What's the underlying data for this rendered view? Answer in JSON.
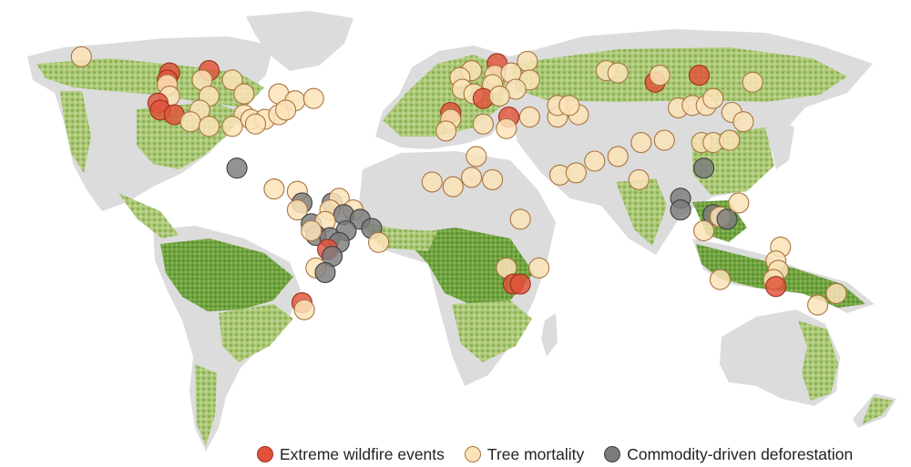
{
  "legend": {
    "wildfire": {
      "label": "Extreme wildfire events",
      "color": "#e0533a",
      "stroke": "#9b2f1f"
    },
    "mortality": {
      "label": "Tree mortality",
      "color": "#fbe3b8",
      "stroke": "#a8743e"
    },
    "deforestation": {
      "label": "Commodity-driven deforestation",
      "color": "#7b7b7b",
      "stroke": "#3e3e3e"
    }
  },
  "colors": {
    "land_bare": "#dcdcdc",
    "forest_light": "#c4d99a",
    "forest_mid": "#93bd55",
    "forest_dark": "#5f9a2c"
  },
  "markers": [
    {
      "type": "mortality",
      "lon": -165,
      "lat": 65
    },
    {
      "type": "wildfire",
      "lon": -127,
      "lat": 58
    },
    {
      "type": "wildfire",
      "lon": -110,
      "lat": 59
    },
    {
      "type": "wildfire",
      "lon": -128,
      "lat": 55
    },
    {
      "type": "mortality",
      "lon": -128,
      "lat": 53
    },
    {
      "type": "mortality",
      "lon": -113,
      "lat": 55
    },
    {
      "type": "mortality",
      "lon": -100,
      "lat": 55
    },
    {
      "type": "mortality",
      "lon": -110,
      "lat": 48
    },
    {
      "type": "mortality",
      "lon": -127,
      "lat": 48
    },
    {
      "type": "wildfire",
      "lon": -132,
      "lat": 45
    },
    {
      "type": "wildfire",
      "lon": -131,
      "lat": 42
    },
    {
      "type": "wildfire",
      "lon": -125,
      "lat": 40
    },
    {
      "type": "mortality",
      "lon": -114,
      "lat": 42
    },
    {
      "type": "mortality",
      "lon": -118,
      "lat": 37
    },
    {
      "type": "mortality",
      "lon": -110,
      "lat": 35
    },
    {
      "type": "mortality",
      "lon": -95,
      "lat": 49
    },
    {
      "type": "mortality",
      "lon": -80,
      "lat": 49
    },
    {
      "type": "mortality",
      "lon": -73,
      "lat": 46
    },
    {
      "type": "mortality",
      "lon": -65,
      "lat": 47
    },
    {
      "type": "mortality",
      "lon": -95,
      "lat": 40
    },
    {
      "type": "mortality",
      "lon": -92,
      "lat": 38
    },
    {
      "type": "mortality",
      "lon": -86,
      "lat": 38
    },
    {
      "type": "mortality",
      "lon": -80,
      "lat": 40
    },
    {
      "type": "mortality",
      "lon": -77,
      "lat": 42
    },
    {
      "type": "mortality",
      "lon": -100,
      "lat": 35
    },
    {
      "type": "mortality",
      "lon": -90,
      "lat": 36
    },
    {
      "type": "deforestation",
      "lon": -98,
      "lat": 17
    },
    {
      "type": "mortality",
      "lon": -82,
      "lat": 8
    },
    {
      "type": "mortality",
      "lon": -72,
      "lat": 7
    },
    {
      "type": "deforestation",
      "lon": -70,
      "lat": 2
    },
    {
      "type": "deforestation",
      "lon": -57,
      "lat": 2
    },
    {
      "type": "mortality",
      "lon": -54,
      "lat": 4
    },
    {
      "type": "mortality",
      "lon": -72,
      "lat": -1
    },
    {
      "type": "mortality",
      "lon": -58,
      "lat": -1
    },
    {
      "type": "mortality",
      "lon": -48,
      "lat": -1
    },
    {
      "type": "deforestation",
      "lon": -52,
      "lat": -3
    },
    {
      "type": "deforestation",
      "lon": -45,
      "lat": -5
    },
    {
      "type": "deforestation",
      "lon": -40,
      "lat": -9
    },
    {
      "type": "deforestation",
      "lon": -66,
      "lat": -7
    },
    {
      "type": "mortality",
      "lon": -60,
      "lat": -6
    },
    {
      "type": "deforestation",
      "lon": -51,
      "lat": -10
    },
    {
      "type": "deforestation",
      "lon": -64,
      "lat": -12
    },
    {
      "type": "deforestation",
      "lon": -58,
      "lat": -13
    },
    {
      "type": "deforestation",
      "lon": -54,
      "lat": -15
    },
    {
      "type": "mortality",
      "lon": -66,
      "lat": -10
    },
    {
      "type": "wildfire",
      "lon": -59,
      "lat": -18
    },
    {
      "type": "deforestation",
      "lon": -57,
      "lat": -21
    },
    {
      "type": "mortality",
      "lon": -37,
      "lat": -15
    },
    {
      "type": "mortality",
      "lon": -64,
      "lat": -26
    },
    {
      "type": "deforestation",
      "lon": -60,
      "lat": -28
    },
    {
      "type": "wildfire",
      "lon": -70,
      "lat": -41
    },
    {
      "type": "mortality",
      "lon": -69,
      "lat": -44
    },
    {
      "type": "mortality",
      "lon": 3,
      "lat": 59
    },
    {
      "type": "wildfire",
      "lon": 14,
      "lat": 62
    },
    {
      "type": "mortality",
      "lon": 27,
      "lat": 63
    },
    {
      "type": "mortality",
      "lon": 13,
      "lat": 57
    },
    {
      "type": "mortality",
      "lon": -2,
      "lat": 56
    },
    {
      "type": "mortality",
      "lon": 20,
      "lat": 58
    },
    {
      "type": "mortality",
      "lon": 28,
      "lat": 55
    },
    {
      "type": "mortality",
      "lon": -1,
      "lat": 51
    },
    {
      "type": "mortality",
      "lon": 12,
      "lat": 53
    },
    {
      "type": "mortality",
      "lon": 22,
      "lat": 51
    },
    {
      "type": "mortality",
      "lon": 4,
      "lat": 49
    },
    {
      "type": "wildfire",
      "lon": 8,
      "lat": 47
    },
    {
      "type": "mortality",
      "lon": 15,
      "lat": 48
    },
    {
      "type": "wildfire",
      "lon": -6,
      "lat": 41
    },
    {
      "type": "mortality",
      "lon": -6,
      "lat": 38
    },
    {
      "type": "wildfire",
      "lon": 19,
      "lat": 39
    },
    {
      "type": "mortality",
      "lon": 28,
      "lat": 39
    },
    {
      "type": "mortality",
      "lon": 40,
      "lat": 39
    },
    {
      "type": "mortality",
      "lon": 49,
      "lat": 40
    },
    {
      "type": "mortality",
      "lon": -8,
      "lat": 33
    },
    {
      "type": "mortality",
      "lon": 8,
      "lat": 36
    },
    {
      "type": "mortality",
      "lon": 18,
      "lat": 34
    },
    {
      "type": "mortality",
      "lon": 5,
      "lat": 22
    },
    {
      "type": "mortality",
      "lon": -14,
      "lat": 11
    },
    {
      "type": "mortality",
      "lon": 3,
      "lat": 13
    },
    {
      "type": "mortality",
      "lon": 12,
      "lat": 12
    },
    {
      "type": "mortality",
      "lon": 41,
      "lat": 14
    },
    {
      "type": "mortality",
      "lon": 48,
      "lat": 15
    },
    {
      "type": "mortality",
      "lon": -5,
      "lat": 9
    },
    {
      "type": "mortality",
      "lon": 24,
      "lat": -5
    },
    {
      "type": "mortality",
      "lon": 18,
      "lat": -26
    },
    {
      "type": "mortality",
      "lon": 32,
      "lat": -26
    },
    {
      "type": "wildfire",
      "lon": 21,
      "lat": -33
    },
    {
      "type": "wildfire",
      "lon": 24,
      "lat": -33
    },
    {
      "type": "mortality",
      "lon": 56,
      "lat": 20
    },
    {
      "type": "mortality",
      "lon": 66,
      "lat": 22
    },
    {
      "type": "mortality",
      "lon": 40,
      "lat": 44
    },
    {
      "type": "mortality",
      "lon": 45,
      "lat": 44
    },
    {
      "type": "mortality",
      "lon": 61,
      "lat": 59
    },
    {
      "type": "mortality",
      "lon": 66,
      "lat": 58
    },
    {
      "type": "wildfire",
      "lon": 82,
      "lat": 54
    },
    {
      "type": "mortality",
      "lon": 84,
      "lat": 57
    },
    {
      "type": "wildfire",
      "lon": 101,
      "lat": 57
    },
    {
      "type": "mortality",
      "lon": 124,
      "lat": 54
    },
    {
      "type": "mortality",
      "lon": 92,
      "lat": 43
    },
    {
      "type": "mortality",
      "lon": 98,
      "lat": 44
    },
    {
      "type": "mortality",
      "lon": 104,
      "lat": 44
    },
    {
      "type": "mortality",
      "lon": 107,
      "lat": 47
    },
    {
      "type": "mortality",
      "lon": 115,
      "lat": 41
    },
    {
      "type": "mortality",
      "lon": 120,
      "lat": 37
    },
    {
      "type": "mortality",
      "lon": 76,
      "lat": 28
    },
    {
      "type": "mortality",
      "lon": 86,
      "lat": 29
    },
    {
      "type": "mortality",
      "lon": 75,
      "lat": 12
    },
    {
      "type": "mortality",
      "lon": 102,
      "lat": 28
    },
    {
      "type": "mortality",
      "lon": 107,
      "lat": 28
    },
    {
      "type": "mortality",
      "lon": 114,
      "lat": 29
    },
    {
      "type": "deforestation",
      "lon": 103,
      "lat": 17
    },
    {
      "type": "deforestation",
      "lon": 93,
      "lat": 4
    },
    {
      "type": "deforestation",
      "lon": 93,
      "lat": -1
    },
    {
      "type": "deforestation",
      "lon": 107,
      "lat": -3
    },
    {
      "type": "mortality",
      "lon": 110,
      "lat": -4
    },
    {
      "type": "deforestation",
      "lon": 113,
      "lat": -5
    },
    {
      "type": "mortality",
      "lon": 118,
      "lat": 2
    },
    {
      "type": "mortality",
      "lon": 103,
      "lat": -10
    },
    {
      "type": "mortality",
      "lon": 136,
      "lat": -17
    },
    {
      "type": "mortality",
      "lon": 134,
      "lat": -23
    },
    {
      "type": "mortality",
      "lon": 135,
      "lat": -27
    },
    {
      "type": "mortality",
      "lon": 133,
      "lat": -31
    },
    {
      "type": "wildfire",
      "lon": 134,
      "lat": -34
    },
    {
      "type": "mortality",
      "lon": 110,
      "lat": -31
    },
    {
      "type": "mortality",
      "lon": 160,
      "lat": -37
    },
    {
      "type": "mortality",
      "lon": 152,
      "lat": -42
    }
  ]
}
